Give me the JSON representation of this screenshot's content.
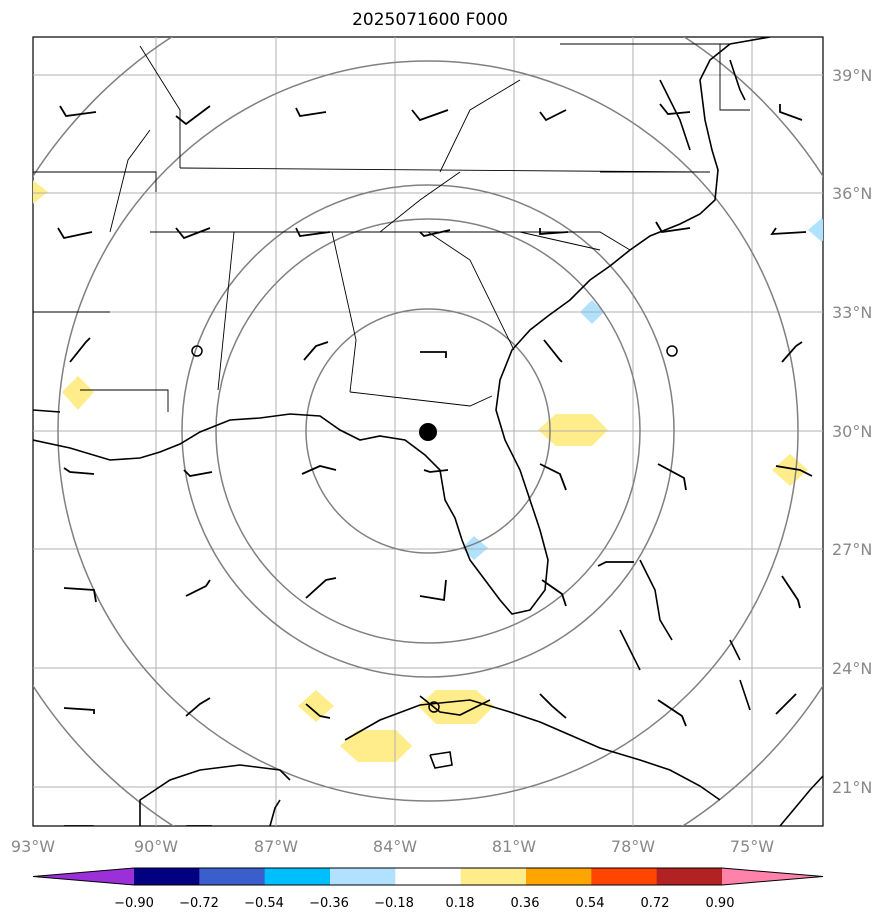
{
  "title": "2025071600 F000",
  "lon_labels": [
    "93°W",
    "90°W",
    "87°W",
    "84°W",
    "81°W",
    "78°W",
    "75°W"
  ],
  "lat_labels": [
    "39°N",
    "36°N",
    "33°N",
    "30°N",
    "27°N",
    "24°N",
    "21°N"
  ],
  "colorbar": {
    "tick_labels": [
      "−0.90",
      "−0.72",
      "−0.54",
      "−0.36",
      "−0.18",
      "0.18",
      "0.36",
      "0.54",
      "0.72",
      "0.90"
    ],
    "colors": [
      "#9b30d9",
      "#000080",
      "#3a5fcd",
      "#00bfff",
      "#b0e2ff",
      "#ffffff",
      "#ffec8b",
      "#ffa500",
      "#ff4500",
      "#b22222",
      "#ff82ab"
    ]
  },
  "center_marker": "storm-center",
  "range_rings": 5
}
